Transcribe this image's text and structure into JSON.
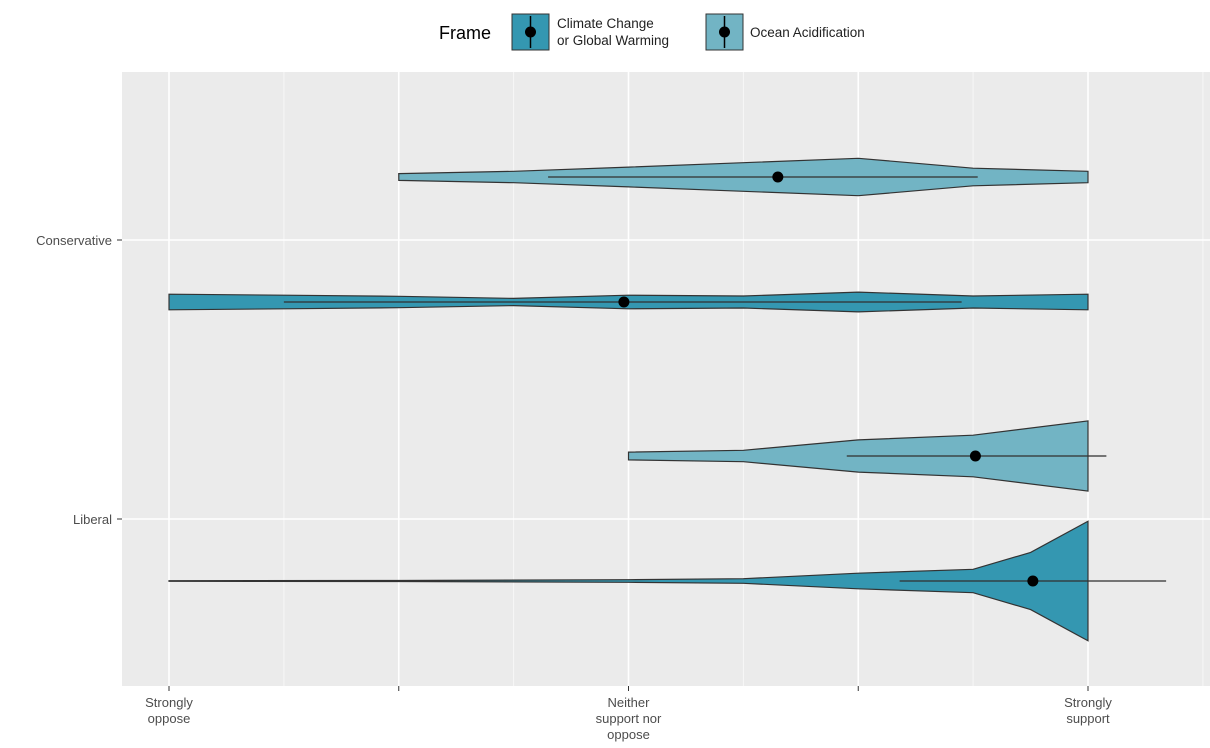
{
  "chart_data": {
    "type": "violin",
    "orientation": "horizontal",
    "categories": [
      "Liberal",
      "Conservative"
    ],
    "x_tick_labels": [
      [
        "Strongly",
        "oppose"
      ],
      [],
      [
        "Neither",
        "support nor",
        "oppose"
      ],
      [],
      [
        "Strongly",
        "support"
      ]
    ],
    "xlim": [
      0.8,
      5.5
    ],
    "legend": {
      "title": "Frame",
      "placement": "top",
      "entries": [
        {
          "label_lines": [
            "Climate Change",
            "or Global Warming"
          ],
          "color": "#3497b1"
        },
        {
          "label_lines": [
            "Ocean Acidification"
          ],
          "color": "#72b4c4"
        }
      ]
    },
    "series": [
      {
        "category": "Conservative",
        "frame": "Ocean Acidification",
        "color": "#72b4c4",
        "mean": 3.65,
        "interval": [
          2.65,
          4.52
        ],
        "density": [
          [
            2.0,
            0.13
          ],
          [
            2.5,
            0.22
          ],
          [
            3.0,
            0.38
          ],
          [
            3.5,
            0.55
          ],
          [
            4.0,
            0.72
          ],
          [
            4.5,
            0.34
          ],
          [
            5.0,
            0.22
          ]
        ]
      },
      {
        "category": "Conservative",
        "frame": "Climate Change or Global Warming",
        "color": "#3497b1",
        "mean": 2.98,
        "interval": [
          1.5,
          4.45
        ],
        "density": [
          [
            1.0,
            0.3
          ],
          [
            1.5,
            0.26
          ],
          [
            2.0,
            0.22
          ],
          [
            2.5,
            0.14
          ],
          [
            3.0,
            0.26
          ],
          [
            3.5,
            0.23
          ],
          [
            4.0,
            0.38
          ],
          [
            4.5,
            0.23
          ],
          [
            5.0,
            0.3
          ]
        ]
      },
      {
        "category": "Liberal",
        "frame": "Ocean Acidification",
        "color": "#72b4c4",
        "mean": 4.51,
        "interval": [
          3.95,
          5.08
        ],
        "density": [
          [
            3.0,
            0.15
          ],
          [
            3.5,
            0.22
          ],
          [
            4.0,
            0.62
          ],
          [
            4.5,
            0.8
          ],
          [
            5.0,
            1.35
          ]
        ]
      },
      {
        "category": "Liberal",
        "frame": "Climate Change or Global Warming",
        "color": "#3497b1",
        "mean": 4.76,
        "interval": [
          4.18,
          5.34
        ],
        "density": [
          [
            1.0,
            0.01
          ],
          [
            2.0,
            0.02
          ],
          [
            3.0,
            0.05
          ],
          [
            3.5,
            0.09
          ],
          [
            4.0,
            0.3
          ],
          [
            4.5,
            0.45
          ],
          [
            4.75,
            1.1
          ],
          [
            5.0,
            2.3
          ]
        ]
      }
    ]
  }
}
